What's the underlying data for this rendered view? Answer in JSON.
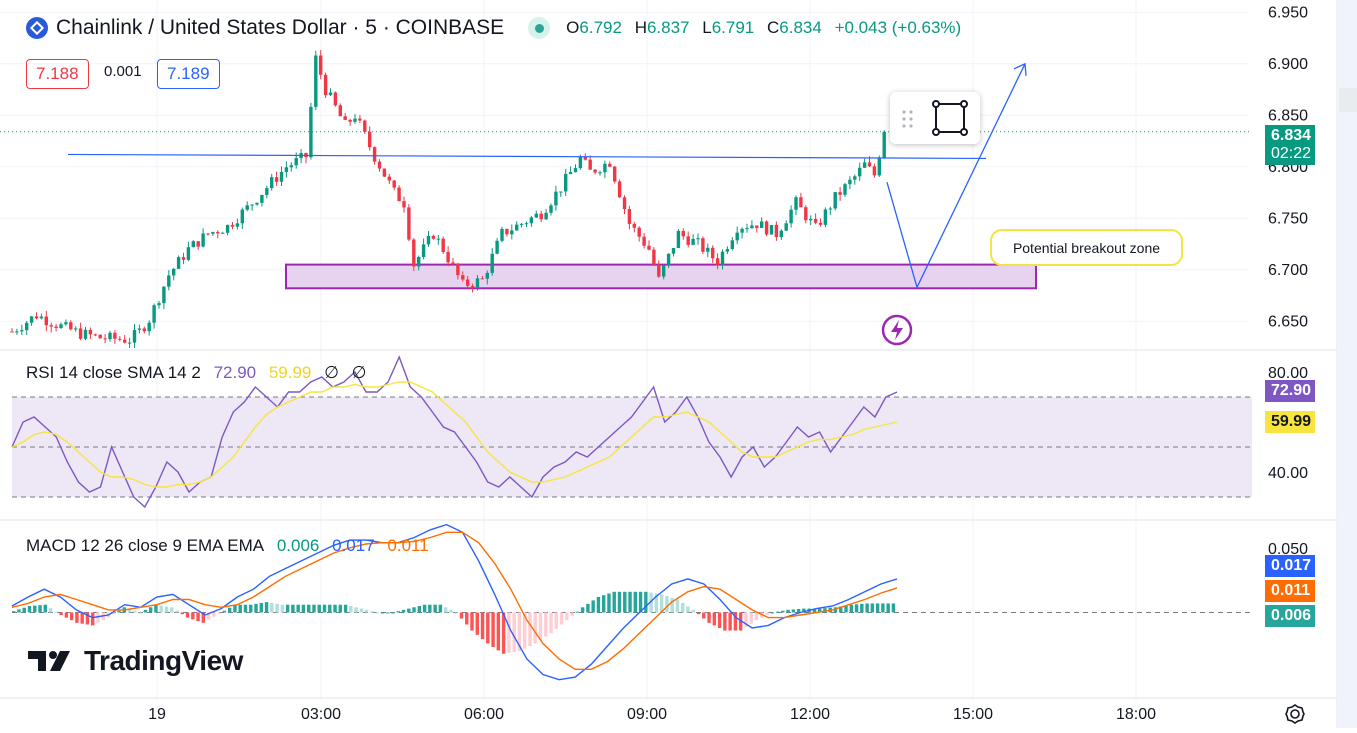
{
  "header": {
    "symbol_title": "Chainlink / United States Dollar · 5 · COINBASE",
    "ohlc": {
      "open_label": "O",
      "open": "6.792",
      "high_label": "H",
      "high": "6.837",
      "low_label": "L",
      "low": "6.791",
      "close_label": "C",
      "close": "6.834",
      "change": "+0.043 (+0.63%)"
    },
    "bid": "7.188",
    "spread": "0.001",
    "ask": "7.189"
  },
  "price_scale": {
    "ticks": [
      "6.950",
      "6.900",
      "6.850",
      "6.800",
      "6.750",
      "6.700",
      "6.650"
    ],
    "last_price_tag": "6.834",
    "countdown_tag": "02:22",
    "last_price_color": "#089981"
  },
  "rsi": {
    "legend": "RSI 14 close SMA 14 2",
    "rsi_value": "72.90",
    "sma_value": "59.99",
    "empty1": "∅",
    "empty2": "∅",
    "ticks": [
      "80.00",
      "40.00"
    ],
    "rsi_tag": "72.90",
    "sma_tag": "59.99",
    "rsi_color": "#7e57c2",
    "sma_color": "#f7e53d"
  },
  "macd": {
    "legend": "MACD 12 26 close 9 EMA EMA",
    "hist_value": "0.006",
    "macd_value": "0.017",
    "signal_value": "0.011",
    "ticks": [
      "0.050",
      "0.000"
    ],
    "macd_tag": "0.017",
    "signal_tag": "0.011",
    "hist_tag": "0.006",
    "macd_color": "#2962ff",
    "signal_color": "#ff6d00",
    "hist_color": "#26a69a"
  },
  "time_axis": {
    "ticks": [
      "19",
      "03:00",
      "06:00",
      "09:00",
      "12:00",
      "15:00",
      "18:00"
    ]
  },
  "annotations": {
    "callout_text": "Potential breakout zone",
    "toolbar_icons": [
      "drag-handle-icon",
      "rectangle-tool-icon"
    ],
    "flash_icon": "lightning-icon"
  },
  "branding": {
    "logo_text": "TradingView"
  },
  "chart_data": [
    {
      "type": "candlestick",
      "title": "Chainlink / United States Dollar · 5 · COINBASE",
      "ylim": [
        6.625,
        6.96
      ],
      "x_ticks": [
        "19",
        "03:00",
        "06:00",
        "09:00",
        "12:00",
        "15:00",
        "18:00"
      ],
      "y_ticks": [
        6.95,
        6.9,
        6.85,
        6.8,
        6.75,
        6.7,
        6.65
      ],
      "close_path": [
        [
          0,
          6.64
        ],
        [
          5,
          6.656
        ],
        [
          10,
          6.645
        ],
        [
          14,
          6.638
        ],
        [
          18,
          6.634
        ],
        [
          24,
          6.632
        ],
        [
          26,
          6.64
        ],
        [
          28,
          6.652
        ],
        [
          32,
          6.695
        ],
        [
          36,
          6.72
        ],
        [
          40,
          6.735
        ],
        [
          44,
          6.742
        ],
        [
          48,
          6.76
        ],
        [
          52,
          6.78
        ],
        [
          56,
          6.8
        ],
        [
          60,
          6.81
        ],
        [
          62,
          6.905
        ],
        [
          64,
          6.875
        ],
        [
          68,
          6.84
        ],
        [
          70,
          6.85
        ],
        [
          74,
          6.81
        ],
        [
          78,
          6.775
        ],
        [
          80,
          6.765
        ],
        [
          82,
          6.705
        ],
        [
          86,
          6.735
        ],
        [
          88,
          6.72
        ],
        [
          92,
          6.685
        ],
        [
          96,
          6.69
        ],
        [
          100,
          6.735
        ],
        [
          104,
          6.745
        ],
        [
          108,
          6.755
        ],
        [
          112,
          6.78
        ],
        [
          116,
          6.808
        ],
        [
          118,
          6.795
        ],
        [
          122,
          6.805
        ],
        [
          126,
          6.745
        ],
        [
          130,
          6.72
        ],
        [
          132,
          6.69
        ],
        [
          136,
          6.735
        ],
        [
          140,
          6.725
        ],
        [
          144,
          6.708
        ],
        [
          148,
          6.742
        ],
        [
          152,
          6.745
        ],
        [
          156,
          6.735
        ],
        [
          160,
          6.765
        ],
        [
          164,
          6.74
        ],
        [
          168,
          6.77
        ],
        [
          172,
          6.79
        ],
        [
          174,
          6.802
        ],
        [
          176,
          6.792
        ],
        [
          178,
          6.834
        ]
      ],
      "last_close": 6.834,
      "drawings": {
        "resistance_line": {
          "y": 6.811
        },
        "support_zone": {
          "y_low": 6.682,
          "y_high": 6.705
        },
        "projected_path": [
          6.785,
          6.683,
          6.9
        ]
      }
    },
    {
      "type": "line",
      "title": "RSI 14 close SMA 14 2",
      "ylim": [
        22,
        88
      ],
      "y_ticks": [
        80,
        40
      ],
      "band": [
        30,
        70
      ],
      "midline": 50,
      "series": [
        {
          "name": "RSI",
          "values": [
            50,
            60,
            62,
            58,
            54,
            44,
            36,
            32,
            34,
            50,
            40,
            30,
            26,
            34,
            44,
            40,
            32,
            36,
            38,
            54,
            64,
            68,
            74,
            70,
            66,
            72,
            72,
            76,
            78,
            74,
            76,
            80,
            72,
            72,
            76,
            86,
            74,
            70,
            64,
            58,
            56,
            50,
            44,
            36,
            34,
            38,
            34,
            30,
            38,
            42,
            44,
            48,
            46,
            50,
            54,
            58,
            62,
            68,
            74,
            60,
            64,
            70,
            62,
            52,
            46,
            38,
            46,
            50,
            42,
            46,
            52,
            58,
            54,
            56,
            48,
            54,
            60,
            66,
            62,
            70,
            72
          ],
          "last": 72.9
        },
        {
          "name": "SMA",
          "values": [
            50,
            52,
            55,
            56,
            55,
            52,
            48,
            44,
            40,
            38,
            38,
            37,
            35,
            34,
            34,
            35,
            35,
            36,
            38,
            42,
            46,
            52,
            58,
            63,
            66,
            68,
            70,
            72,
            72,
            74,
            74,
            75,
            74,
            74,
            75,
            76,
            76,
            74,
            72,
            68,
            64,
            60,
            54,
            48,
            44,
            40,
            38,
            36,
            36,
            37,
            38,
            40,
            42,
            44,
            46,
            50,
            54,
            58,
            62,
            62,
            63,
            64,
            62,
            60,
            56,
            52,
            48,
            46,
            46,
            46,
            48,
            50,
            52,
            53,
            53,
            54,
            55,
            57,
            58,
            59,
            60
          ],
          "last": 59.99
        }
      ]
    },
    {
      "type": "line",
      "title": "MACD 12 26 close 9 EMA EMA",
      "ylim": [
        -0.06,
        0.07
      ],
      "y_ticks": [
        0.05,
        0.0
      ],
      "series": [
        {
          "name": "MACD",
          "values": [
            0.005,
            0.012,
            0.018,
            0.012,
            0.002,
            -0.004,
            -0.002,
            0.006,
            0.004,
            0.012,
            0.014,
            0.006,
            -0.002,
            0.003,
            0.012,
            0.018,
            0.028,
            0.034,
            0.04,
            0.046,
            0.052,
            0.056,
            0.056,
            0.054,
            0.054,
            0.058,
            0.064,
            0.068,
            0.062,
            0.04,
            0.014,
            -0.014,
            -0.036,
            -0.048,
            -0.052,
            -0.05,
            -0.04,
            -0.026,
            -0.012,
            0.0,
            0.012,
            0.022,
            0.026,
            0.022,
            0.01,
            -0.004,
            -0.012,
            -0.01,
            -0.004,
            0.0,
            0.003,
            0.005,
            0.01,
            0.016,
            0.022,
            0.026
          ],
          "last": 0.017
        },
        {
          "name": "Signal",
          "values": [
            0.004,
            0.007,
            0.012,
            0.014,
            0.01,
            0.006,
            0.002,
            0.002,
            0.004,
            0.006,
            0.01,
            0.01,
            0.006,
            0.004,
            0.006,
            0.012,
            0.02,
            0.028,
            0.034,
            0.04,
            0.046,
            0.05,
            0.053,
            0.054,
            0.054,
            0.055,
            0.058,
            0.062,
            0.062,
            0.054,
            0.038,
            0.018,
            -0.006,
            -0.024,
            -0.036,
            -0.044,
            -0.044,
            -0.038,
            -0.028,
            -0.016,
            -0.004,
            0.008,
            0.016,
            0.02,
            0.018,
            0.01,
            0.002,
            -0.004,
            -0.004,
            -0.002,
            0.0,
            0.002,
            0.006,
            0.01,
            0.015,
            0.019
          ],
          "last": 0.011
        },
        {
          "name": "Histogram",
          "values": [
            0.001,
            0.005,
            0.006,
            -0.002,
            -0.008,
            -0.01,
            -0.004,
            0.004,
            0.0,
            0.006,
            0.004,
            -0.004,
            -0.008,
            -0.001,
            0.006,
            0.006,
            0.008,
            0.006,
            0.006,
            0.006,
            0.006,
            0.006,
            0.003,
            0.0,
            0.0,
            0.003,
            0.006,
            0.006,
            0.0,
            -0.014,
            -0.024,
            -0.032,
            -0.03,
            -0.024,
            -0.016,
            -0.006,
            0.004,
            0.012,
            0.016,
            0.016,
            0.016,
            0.014,
            0.01,
            0.002,
            -0.008,
            -0.014,
            -0.014,
            -0.006,
            0.0,
            0.002,
            0.003,
            0.003,
            0.004,
            0.006,
            0.007,
            0.007
          ],
          "last": 0.006
        }
      ]
    }
  ]
}
